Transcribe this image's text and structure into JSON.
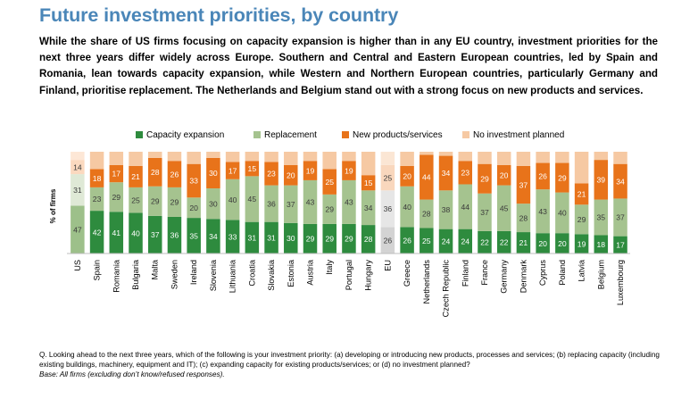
{
  "header": {
    "title": "Future investment priorities, by country",
    "subtitle": "While the share of US firms focusing on capacity expansion is higher than in any EU country, investment priorities for the next three years differ widely across Europe. Southern and Central and Eastern European countries, led by Spain and Romania, lean towards capacity expansion, while Western and Northern European countries, particularly Germany and Finland, prioritise replacement. The Netherlands and Belgium stand out with a strong focus on new products and services."
  },
  "footnote": {
    "question": "Q. Looking ahead to the next three years, which of the following is your investment priority: (a) developing or introducing new products, processes and services; (b) replacing capacity (including existing buildings, machinery, equipment and IT); (c) expanding capacity for existing products/services; or (d) no investment planned?",
    "base": "Base: All firms (excluding don’t know/refused responses)."
  },
  "chart_data": {
    "type": "bar",
    "stacked": true,
    "orientation": "vertical",
    "ylabel": "% of firms",
    "ylim": [
      0,
      100
    ],
    "legend_position": "top",
    "categories": [
      "US",
      "Spain",
      "Romania",
      "Bulgaria",
      "Malta",
      "Sweden",
      "Ireland",
      "Slovenia",
      "Lithuania",
      "Croatia",
      "Slovakia",
      "Estonia",
      "Austria",
      "Italy",
      "Portugal",
      "Hungary",
      "EU",
      "Greece",
      "Netherlands",
      "Czech Republic",
      "Finland",
      "France",
      "Germany",
      "Denmark",
      "Cyprus",
      "Poland",
      "Latvia",
      "Belgium",
      "Luxembourg"
    ],
    "highlight": {
      "US": "#9dc08a",
      "EU": "#d3d3d3"
    },
    "series": [
      {
        "name": "Capacity expansion",
        "color": "#2e8b3e",
        "values": [
          47,
          42,
          41,
          40,
          37,
          36,
          35,
          34,
          33,
          31,
          31,
          30,
          29,
          29,
          29,
          28,
          26,
          26,
          25,
          24,
          24,
          22,
          22,
          21,
          20,
          20,
          19,
          18,
          17
        ]
      },
      {
        "name": "Replacement",
        "color": "#a5c38f",
        "values": [
          31,
          23,
          29,
          25,
          29,
          29,
          20,
          30,
          40,
          45,
          36,
          37,
          43,
          29,
          43,
          34,
          36,
          40,
          28,
          38,
          44,
          37,
          45,
          28,
          43,
          40,
          29,
          35,
          37
        ]
      },
      {
        "name": "New products/services",
        "color": "#e8731a",
        "values": [
          14,
          18,
          17,
          21,
          28,
          26,
          33,
          30,
          17,
          15,
          23,
          20,
          19,
          25,
          19,
          15,
          25,
          20,
          44,
          34,
          23,
          29,
          20,
          37,
          26,
          29,
          21,
          39,
          34
        ]
      },
      {
        "name": "No investment planned",
        "color": "#f6c9a3",
        "values": [
          8,
          17,
          13,
          14,
          6,
          9,
          12,
          6,
          10,
          9,
          10,
          13,
          9,
          17,
          9,
          23,
          13,
          14,
          3,
          4,
          9,
          12,
          13,
          14,
          11,
          11,
          31,
          8,
          12
        ]
      }
    ]
  }
}
